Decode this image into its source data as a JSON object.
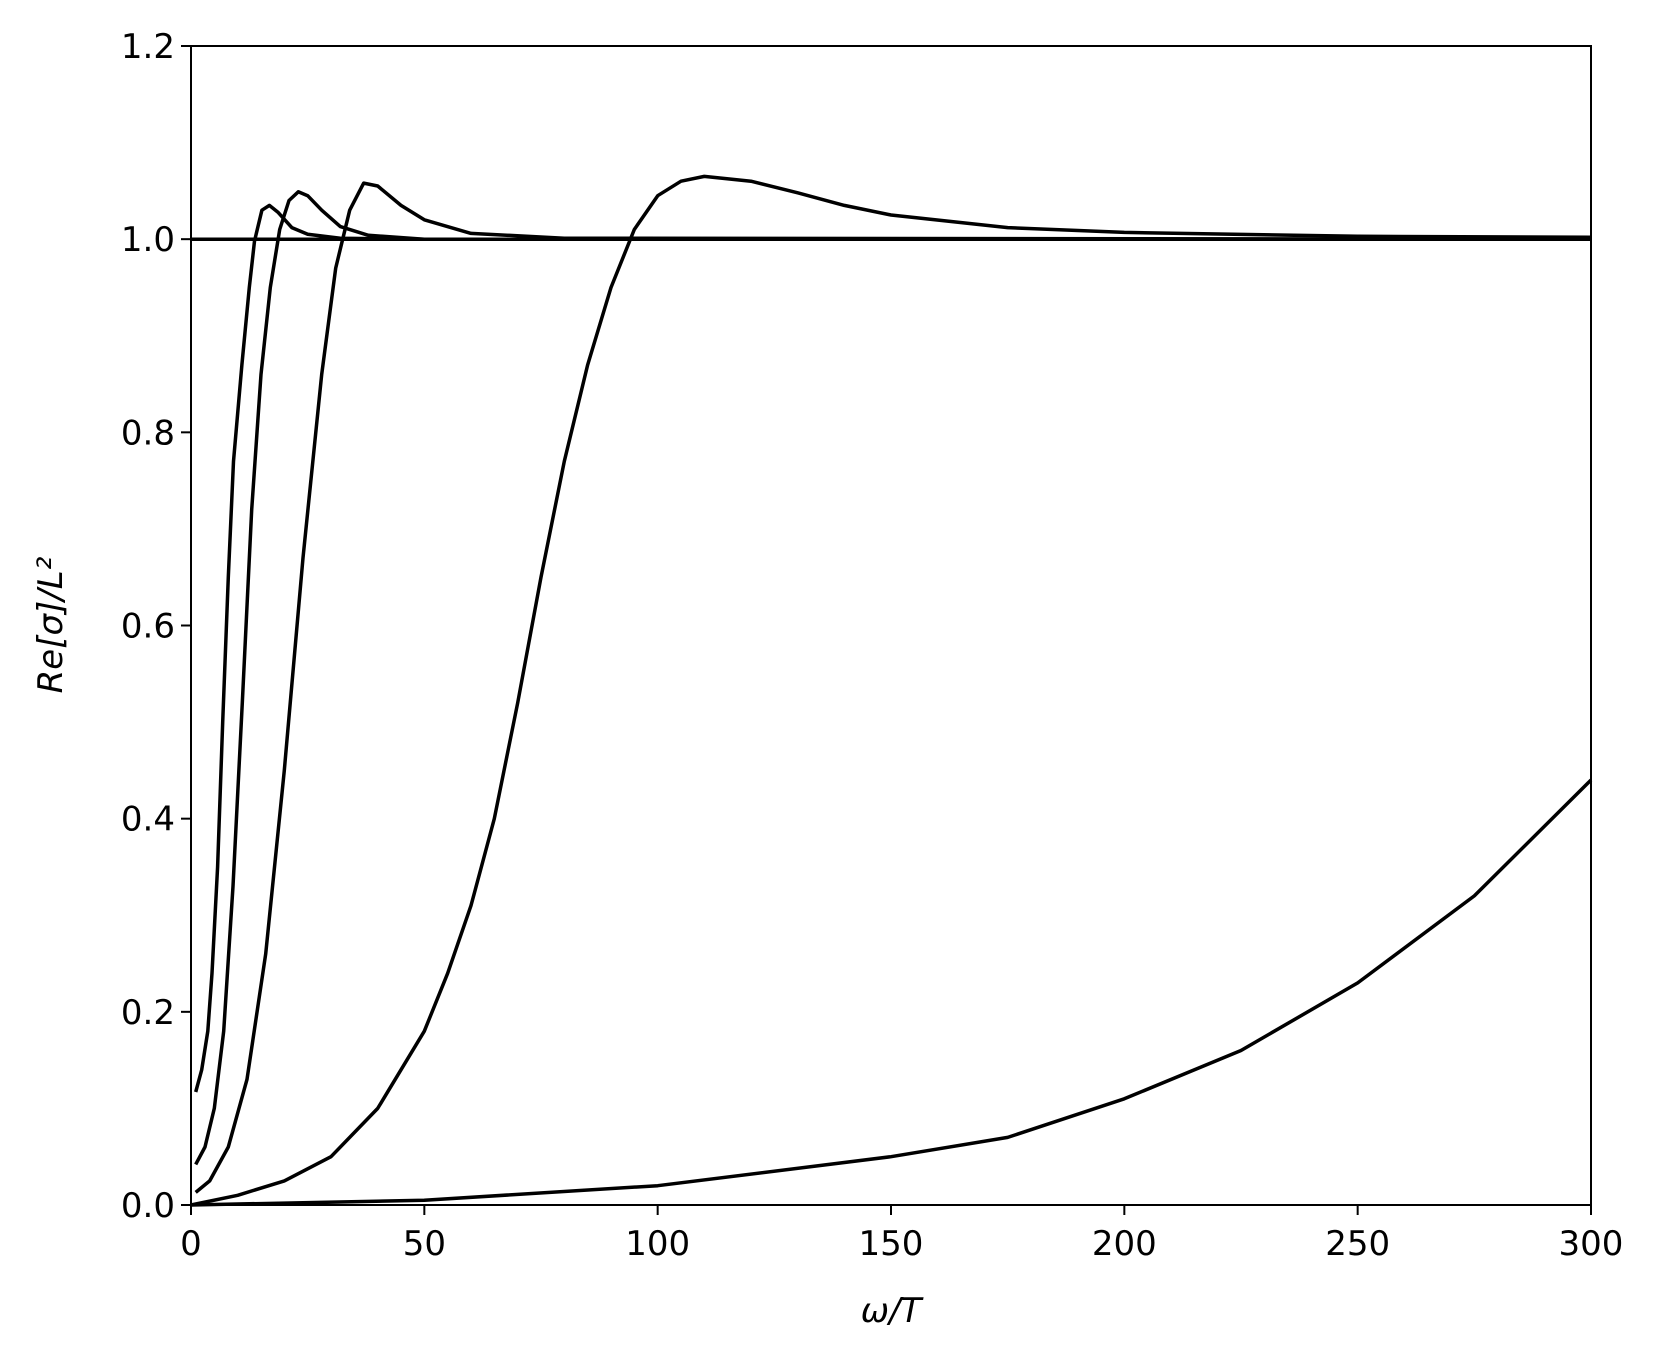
{
  "chart_data": {
    "type": "line",
    "x_label": "ω/T",
    "y_label": "Re[σ]/L²",
    "xlim": [
      0,
      300
    ],
    "ylim": [
      0,
      1.2
    ],
    "xticks": [
      0,
      50,
      100,
      150,
      200,
      250,
      300
    ],
    "yticks": [
      {
        "value": 0,
        "label": "0.0"
      },
      {
        "value": 0.2,
        "label": "0.2"
      },
      {
        "value": 0.4,
        "label": "0.4"
      },
      {
        "value": 0.6,
        "label": "0.6"
      },
      {
        "value": 0.8,
        "label": "0.8"
      },
      {
        "value": 1.0,
        "label": "1.0"
      },
      {
        "value": 1.2,
        "label": "1.2"
      }
    ],
    "series": [
      {
        "color": "#000000",
        "x": [
          1,
          2.3,
          3.6,
          4.5,
          5.7,
          6.8,
          8,
          9.1,
          10.9,
          12.5,
          13.6,
          15.2,
          16.8,
          18.6,
          21.6,
          25,
          32,
          50,
          300
        ],
        "values": [
          0.117,
          0.14,
          0.18,
          0.24,
          0.35,
          0.5,
          0.65,
          0.77,
          0.87,
          0.95,
          0.998,
          1.03,
          1.035,
          1.028,
          1.012,
          1.005,
          1.001,
          1.0,
          1.0
        ]
      },
      {
        "color": "#000000",
        "x": [
          1,
          3,
          5,
          7,
          9,
          11,
          13,
          15,
          17,
          19,
          21,
          23,
          25,
          28,
          32,
          38,
          50,
          300
        ],
        "values": [
          0.042,
          0.06,
          0.1,
          0.18,
          0.33,
          0.52,
          0.72,
          0.86,
          0.95,
          1.01,
          1.04,
          1.049,
          1.045,
          1.03,
          1.013,
          1.004,
          1.0,
          1.0
        ]
      },
      {
        "color": "#000000",
        "x": [
          1,
          4,
          8,
          12,
          16,
          20,
          24,
          28,
          31,
          34,
          37,
          40,
          45,
          50,
          60,
          80,
          300
        ],
        "values": [
          0.013,
          0.025,
          0.06,
          0.13,
          0.26,
          0.45,
          0.67,
          0.86,
          0.97,
          1.03,
          1.058,
          1.055,
          1.035,
          1.02,
          1.006,
          1.001,
          1.0
        ]
      },
      {
        "color": "#000000",
        "x": [
          0,
          10,
          20,
          30,
          40,
          50,
          55,
          60,
          65,
          70,
          75,
          80,
          85,
          90,
          95,
          100,
          105,
          110,
          120,
          130,
          140,
          150,
          175,
          200,
          250,
          300
        ],
        "values": [
          0,
          0.01,
          0.025,
          0.05,
          0.1,
          0.18,
          0.24,
          0.31,
          0.4,
          0.52,
          0.65,
          0.77,
          0.87,
          0.95,
          1.01,
          1.045,
          1.06,
          1.065,
          1.06,
          1.048,
          1.035,
          1.025,
          1.012,
          1.007,
          1.003,
          1.002
        ]
      },
      {
        "color": "#000000",
        "x": [
          0,
          50,
          100,
          150,
          175,
          200,
          225,
          250,
          275,
          300
        ],
        "values": [
          0,
          0.005,
          0.02,
          0.05,
          0.07,
          0.11,
          0.16,
          0.23,
          0.32,
          0.44
        ]
      },
      {
        "color": "#000000",
        "x": [
          0,
          300
        ],
        "values": [
          1.0,
          1.0
        ]
      }
    ]
  }
}
